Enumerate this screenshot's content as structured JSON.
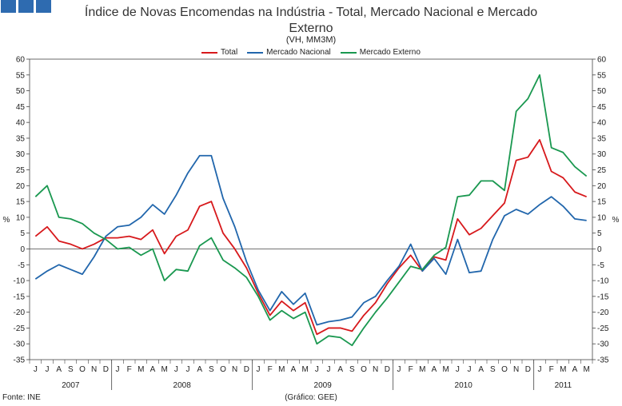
{
  "header": {
    "logo": "ine-logo-icon",
    "title_line1": "Índice de Novas Encomendas na Indústria - Total, Mercado Nacional e Mercado",
    "title_line2": "Externo",
    "subtitle": "(VH, MM3M)"
  },
  "footer": {
    "source": "Fonte: INE",
    "credit": "(Gráfico: GEE)"
  },
  "chart_data": {
    "type": "line",
    "title": "Índice de Novas Encomendas na Indústria - Total, Mercado Nacional e Mercado Externo",
    "subtitle": "(VH, MM3M)",
    "ylabel_left": "%",
    "ylabel_right": "%",
    "ylim": [
      -35,
      60
    ],
    "yticks": [
      -35,
      -30,
      -25,
      -20,
      -15,
      -10,
      -5,
      0,
      5,
      10,
      15,
      20,
      25,
      30,
      35,
      40,
      45,
      50,
      55,
      60
    ],
    "grid": false,
    "legend_position": "top-center",
    "months": [
      "J",
      "J",
      "A",
      "S",
      "O",
      "N",
      "D",
      "J",
      "F",
      "M",
      "A",
      "M",
      "J",
      "J",
      "A",
      "S",
      "O",
      "N",
      "D",
      "J",
      "F",
      "M",
      "A",
      "M",
      "J",
      "J",
      "A",
      "S",
      "O",
      "N",
      "D",
      "J",
      "F",
      "M",
      "A",
      "M",
      "J",
      "J",
      "A",
      "S",
      "O",
      "N",
      "D",
      "J",
      "F",
      "M",
      "A",
      "M"
    ],
    "years": [
      {
        "label": "2007",
        "count": 7
      },
      {
        "label": "2008",
        "count": 12
      },
      {
        "label": "2009",
        "count": 12
      },
      {
        "label": "2010",
        "count": 12
      },
      {
        "label": "2011",
        "count": 5
      }
    ],
    "series": [
      {
        "name": "Total",
        "color": "#d7191c",
        "values": [
          4,
          7,
          2.5,
          1.5,
          0,
          1.5,
          3.5,
          3.5,
          4,
          3,
          6,
          -1.5,
          4,
          6,
          13.5,
          15,
          5,
          0,
          -6,
          -14,
          -21,
          -16.5,
          -19.5,
          -17,
          -27,
          -25,
          -25,
          -26,
          -21,
          -17,
          -11,
          -6,
          -2,
          -7,
          -2.5,
          -3.5,
          9.5,
          4.5,
          6.5,
          10.5,
          14.5,
          28,
          29,
          34.5,
          24.5,
          22.5,
          18,
          16.5
        ]
      },
      {
        "name": "Mercado Nacional",
        "color": "#2166ac",
        "values": [
          -9.5,
          -7,
          -5,
          -6.5,
          -8,
          -2.5,
          4,
          7,
          7.5,
          10,
          14,
          11,
          17,
          24,
          29.5,
          29.5,
          16,
          7,
          -4,
          -13,
          -19.5,
          -13.5,
          -17.5,
          -14,
          -24,
          -23,
          -22.5,
          -21.5,
          -17,
          -15,
          -10,
          -5.5,
          1.5,
          -7,
          -3,
          -8,
          3,
          -7.5,
          -7,
          3,
          10.5,
          12.5,
          11,
          14,
          16.5,
          13.5,
          9.5,
          9
        ]
      },
      {
        "name": "Mercado Externo",
        "color": "#1a9850",
        "values": [
          16.5,
          20,
          10,
          9.5,
          8,
          5,
          3,
          0,
          0.5,
          -2,
          0,
          -10,
          -6.5,
          -7,
          1,
          3.5,
          -3.5,
          -6,
          -9,
          -15,
          -22.5,
          -19.5,
          -22,
          -20,
          -30,
          -27.5,
          -28,
          -30.5,
          -25,
          -20,
          -15.5,
          -10.5,
          -5.5,
          -6.5,
          -2,
          0.5,
          16.5,
          17,
          21.5,
          21.5,
          18.5,
          43.5,
          47.5,
          55,
          32,
          30.5,
          26,
          23
        ]
      }
    ]
  }
}
